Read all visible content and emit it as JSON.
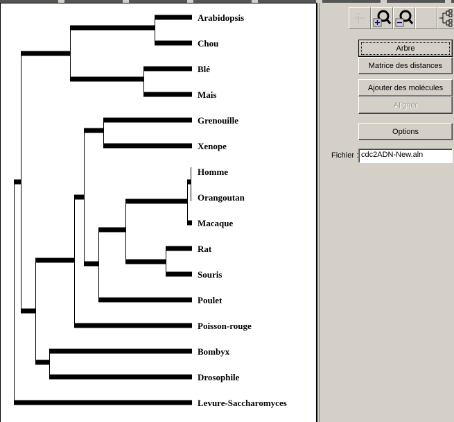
{
  "tree": {
    "leaves": [
      "Arabidopsis",
      "Chou",
      "Blé",
      "Mais",
      "Grenouille",
      "Xenope",
      "Homme",
      "Orangoutan",
      "Macaque",
      "Rat",
      "Souris",
      "Poulet",
      "Poisson-rouge",
      "Bombyx",
      "Drosophile",
      "Levure-Saccharomyces"
    ],
    "newick": "((((Arabidopsis,Chou),(Blé,Mais)),((((Grenouille,Xenope),((((Homme,Orangoutan),Macaque),(Rat,Souris)),Poulet)),Poisson-rouge),(Bombyx,Drosophile))),Levure-Saccharomyces)"
  },
  "toolbar": {
    "icons": [
      "move-icon",
      "zoom-in-icon",
      "zoom-out-icon",
      "blank",
      "tree-layout-icon"
    ]
  },
  "buttons": {
    "arbre": "Arbre",
    "matrice": "Matrice des distances",
    "ajouter": "Ajouter des molécules",
    "aligner": "Aligner",
    "options": "Options"
  },
  "file": {
    "label": "Fichier :",
    "value": "cdc2ADN-New.aln"
  }
}
